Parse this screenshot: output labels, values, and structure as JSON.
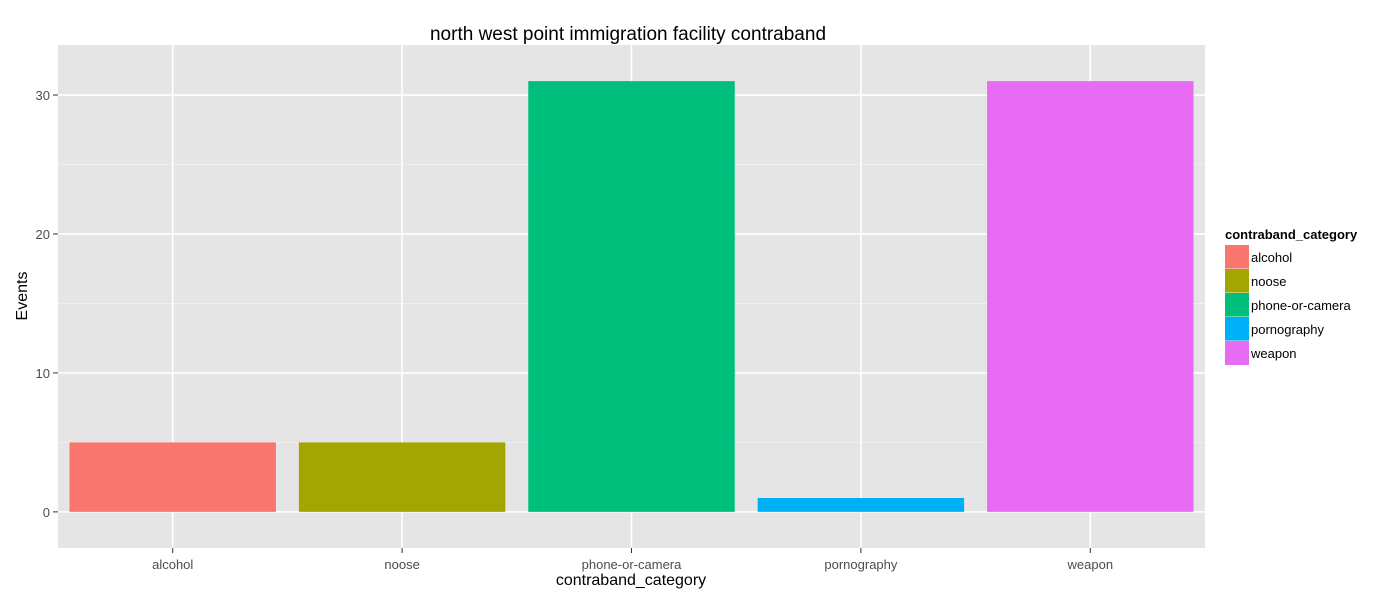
{
  "chart_data": {
    "type": "bar",
    "title": "north west point immigration facility contraband",
    "xlabel": "contraband_category",
    "ylabel": "Events",
    "categories": [
      "alcohol",
      "noose",
      "phone-or-camera",
      "pornography",
      "weapon"
    ],
    "values": [
      5,
      5,
      31,
      1,
      31
    ],
    "colors": [
      "#F8766D",
      "#A3A500",
      "#00BF7D",
      "#00B0F6",
      "#E76BF3"
    ],
    "ylim": [
      -2.6,
      33.6
    ],
    "yticks": [
      0,
      10,
      20,
      30
    ],
    "grid": true,
    "legend": {
      "title": "contraband_category",
      "placement": "right",
      "entries": [
        "alcohol",
        "noose",
        "phone-or-camera",
        "pornography",
        "weapon"
      ]
    }
  }
}
